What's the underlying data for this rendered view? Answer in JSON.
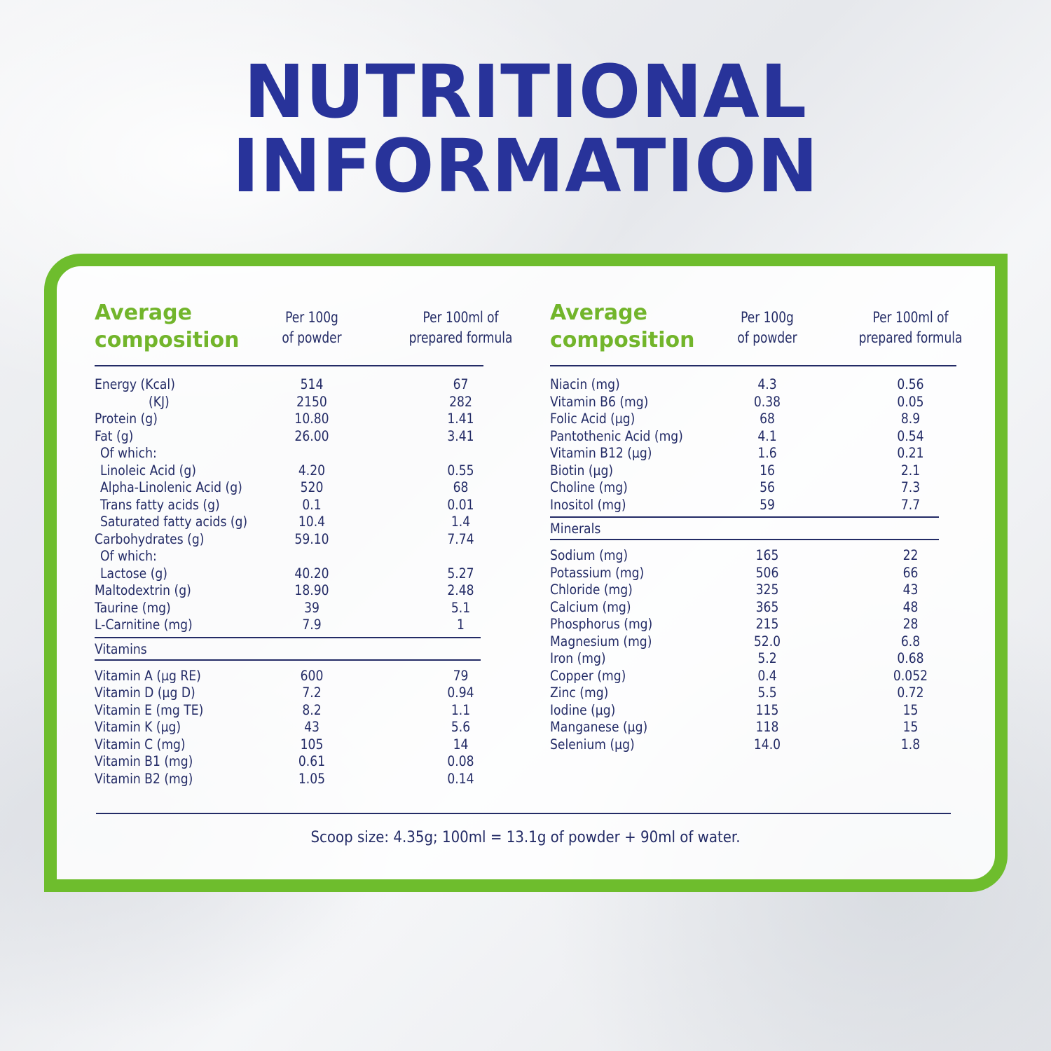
{
  "title_line1": "NUTRITIONAL",
  "title_line2": "INFORMATION",
  "colors": {
    "title": "#28339a",
    "accent_green": "#6ebd2d",
    "text": "#232b66"
  },
  "left": {
    "header": {
      "name_line1": "Average",
      "name_line2": "composition",
      "col1_line1": "Per 100g",
      "col1_line2": "of powder",
      "col2_line1": "Per 100ml of",
      "col2_line2": "prepared formula"
    },
    "main_rows": [
      {
        "name": "Energy (Kcal)",
        "v1": "514",
        "v2": "67"
      },
      {
        "name": "(KJ)",
        "v1": "2150",
        "v2": "282",
        "kj": true
      },
      {
        "name": "Protein (g)",
        "v1": "10.80",
        "v2": "1.41"
      },
      {
        "name": "Fat (g)",
        "v1": "26.00",
        "v2": "3.41"
      },
      {
        "name": "Of which:",
        "v1": "",
        "v2": "",
        "indent": true
      },
      {
        "name": "Linoleic Acid (g)",
        "v1": "4.20",
        "v2": "0.55",
        "indent": true
      },
      {
        "name": "Alpha-Linolenic Acid (g)",
        "v1": "520",
        "v2": "68",
        "indent": true
      },
      {
        "name": "Trans fatty acids (g)",
        "v1": "0.1",
        "v2": "0.01",
        "indent": true
      },
      {
        "name": "Saturated fatty acids (g)",
        "v1": "10.4",
        "v2": "1.4",
        "indent": true
      },
      {
        "name": "Carbohydrates (g)",
        "v1": "59.10",
        "v2": "7.74"
      },
      {
        "name": "Of which:",
        "v1": "",
        "v2": "",
        "indent": true
      },
      {
        "name": "Lactose (g)",
        "v1": "40.20",
        "v2": "5.27",
        "indent": true
      },
      {
        "name": "Maltodextrin (g)",
        "v1": "18.90",
        "v2": "2.48"
      },
      {
        "name": "Taurine (mg)",
        "v1": "39",
        "v2": "5.1"
      },
      {
        "name": "L-Carnitine (mg)",
        "v1": "7.9",
        "v2": "1"
      }
    ],
    "section_label": "Vitamins",
    "section_rows": [
      {
        "name": "Vitamin A (µg RE)",
        "v1": "600",
        "v2": "79"
      },
      {
        "name": "Vitamin D (µg D)",
        "v1": "7.2",
        "v2": "0.94"
      },
      {
        "name": "Vitamin E (mg TE)",
        "v1": "8.2",
        "v2": "1.1"
      },
      {
        "name": "Vitamin K (µg)",
        "v1": "43",
        "v2": "5.6"
      },
      {
        "name": "Vitamin C (mg)",
        "v1": "105",
        "v2": "14"
      },
      {
        "name": "Vitamin B1 (mg)",
        "v1": "0.61",
        "v2": "0.08"
      },
      {
        "name": "Vitamin B2 (mg)",
        "v1": "1.05",
        "v2": "0.14"
      }
    ]
  },
  "right": {
    "header": {
      "name_line1": "Average",
      "name_line2": "composition",
      "col1_line1": "Per 100g",
      "col1_line2": "of powder",
      "col2_line1": "Per 100ml of",
      "col2_line2": "prepared formula"
    },
    "main_rows": [
      {
        "name": "Niacin (mg)",
        "v1": "4.3",
        "v2": "0.56"
      },
      {
        "name": "Vitamin B6 (mg)",
        "v1": "0.38",
        "v2": "0.05"
      },
      {
        "name": "Folic Acid (µg)",
        "v1": "68",
        "v2": "8.9"
      },
      {
        "name": "Pantothenic Acid (mg)",
        "v1": "4.1",
        "v2": "0.54"
      },
      {
        "name": "Vitamin B12 (µg)",
        "v1": "1.6",
        "v2": "0.21"
      },
      {
        "name": "Biotin (µg)",
        "v1": "16",
        "v2": "2.1"
      },
      {
        "name": "Choline (mg)",
        "v1": "56",
        "v2": "7.3"
      },
      {
        "name": "Inositol (mg)",
        "v1": "59",
        "v2": "7.7"
      }
    ],
    "section_label": "Minerals",
    "section_rows": [
      {
        "name": "Sodium (mg)",
        "v1": "165",
        "v2": "22"
      },
      {
        "name": "Potassium (mg)",
        "v1": "506",
        "v2": "66"
      },
      {
        "name": "Chloride (mg)",
        "v1": "325",
        "v2": "43"
      },
      {
        "name": "Calcium (mg)",
        "v1": "365",
        "v2": "48"
      },
      {
        "name": "Phosphorus (mg)",
        "v1": "215",
        "v2": "28"
      },
      {
        "name": "Magnesium (mg)",
        "v1": "52.0",
        "v2": "6.8"
      },
      {
        "name": "Iron (mg)",
        "v1": "5.2",
        "v2": "0.68"
      },
      {
        "name": "Copper (mg)",
        "v1": "0.4",
        "v2": "0.052"
      },
      {
        "name": "Zinc (mg)",
        "v1": "5.5",
        "v2": "0.72"
      },
      {
        "name": "Iodine (µg)",
        "v1": "115",
        "v2": "15"
      },
      {
        "name": "Manganese (µg)",
        "v1": "118",
        "v2": "15"
      },
      {
        "name": "Selenium (µg)",
        "v1": "14.0",
        "v2": "1.8"
      }
    ]
  },
  "footnote": "Scoop size: 4.35g; 100ml = 13.1g of powder + 90ml of water."
}
